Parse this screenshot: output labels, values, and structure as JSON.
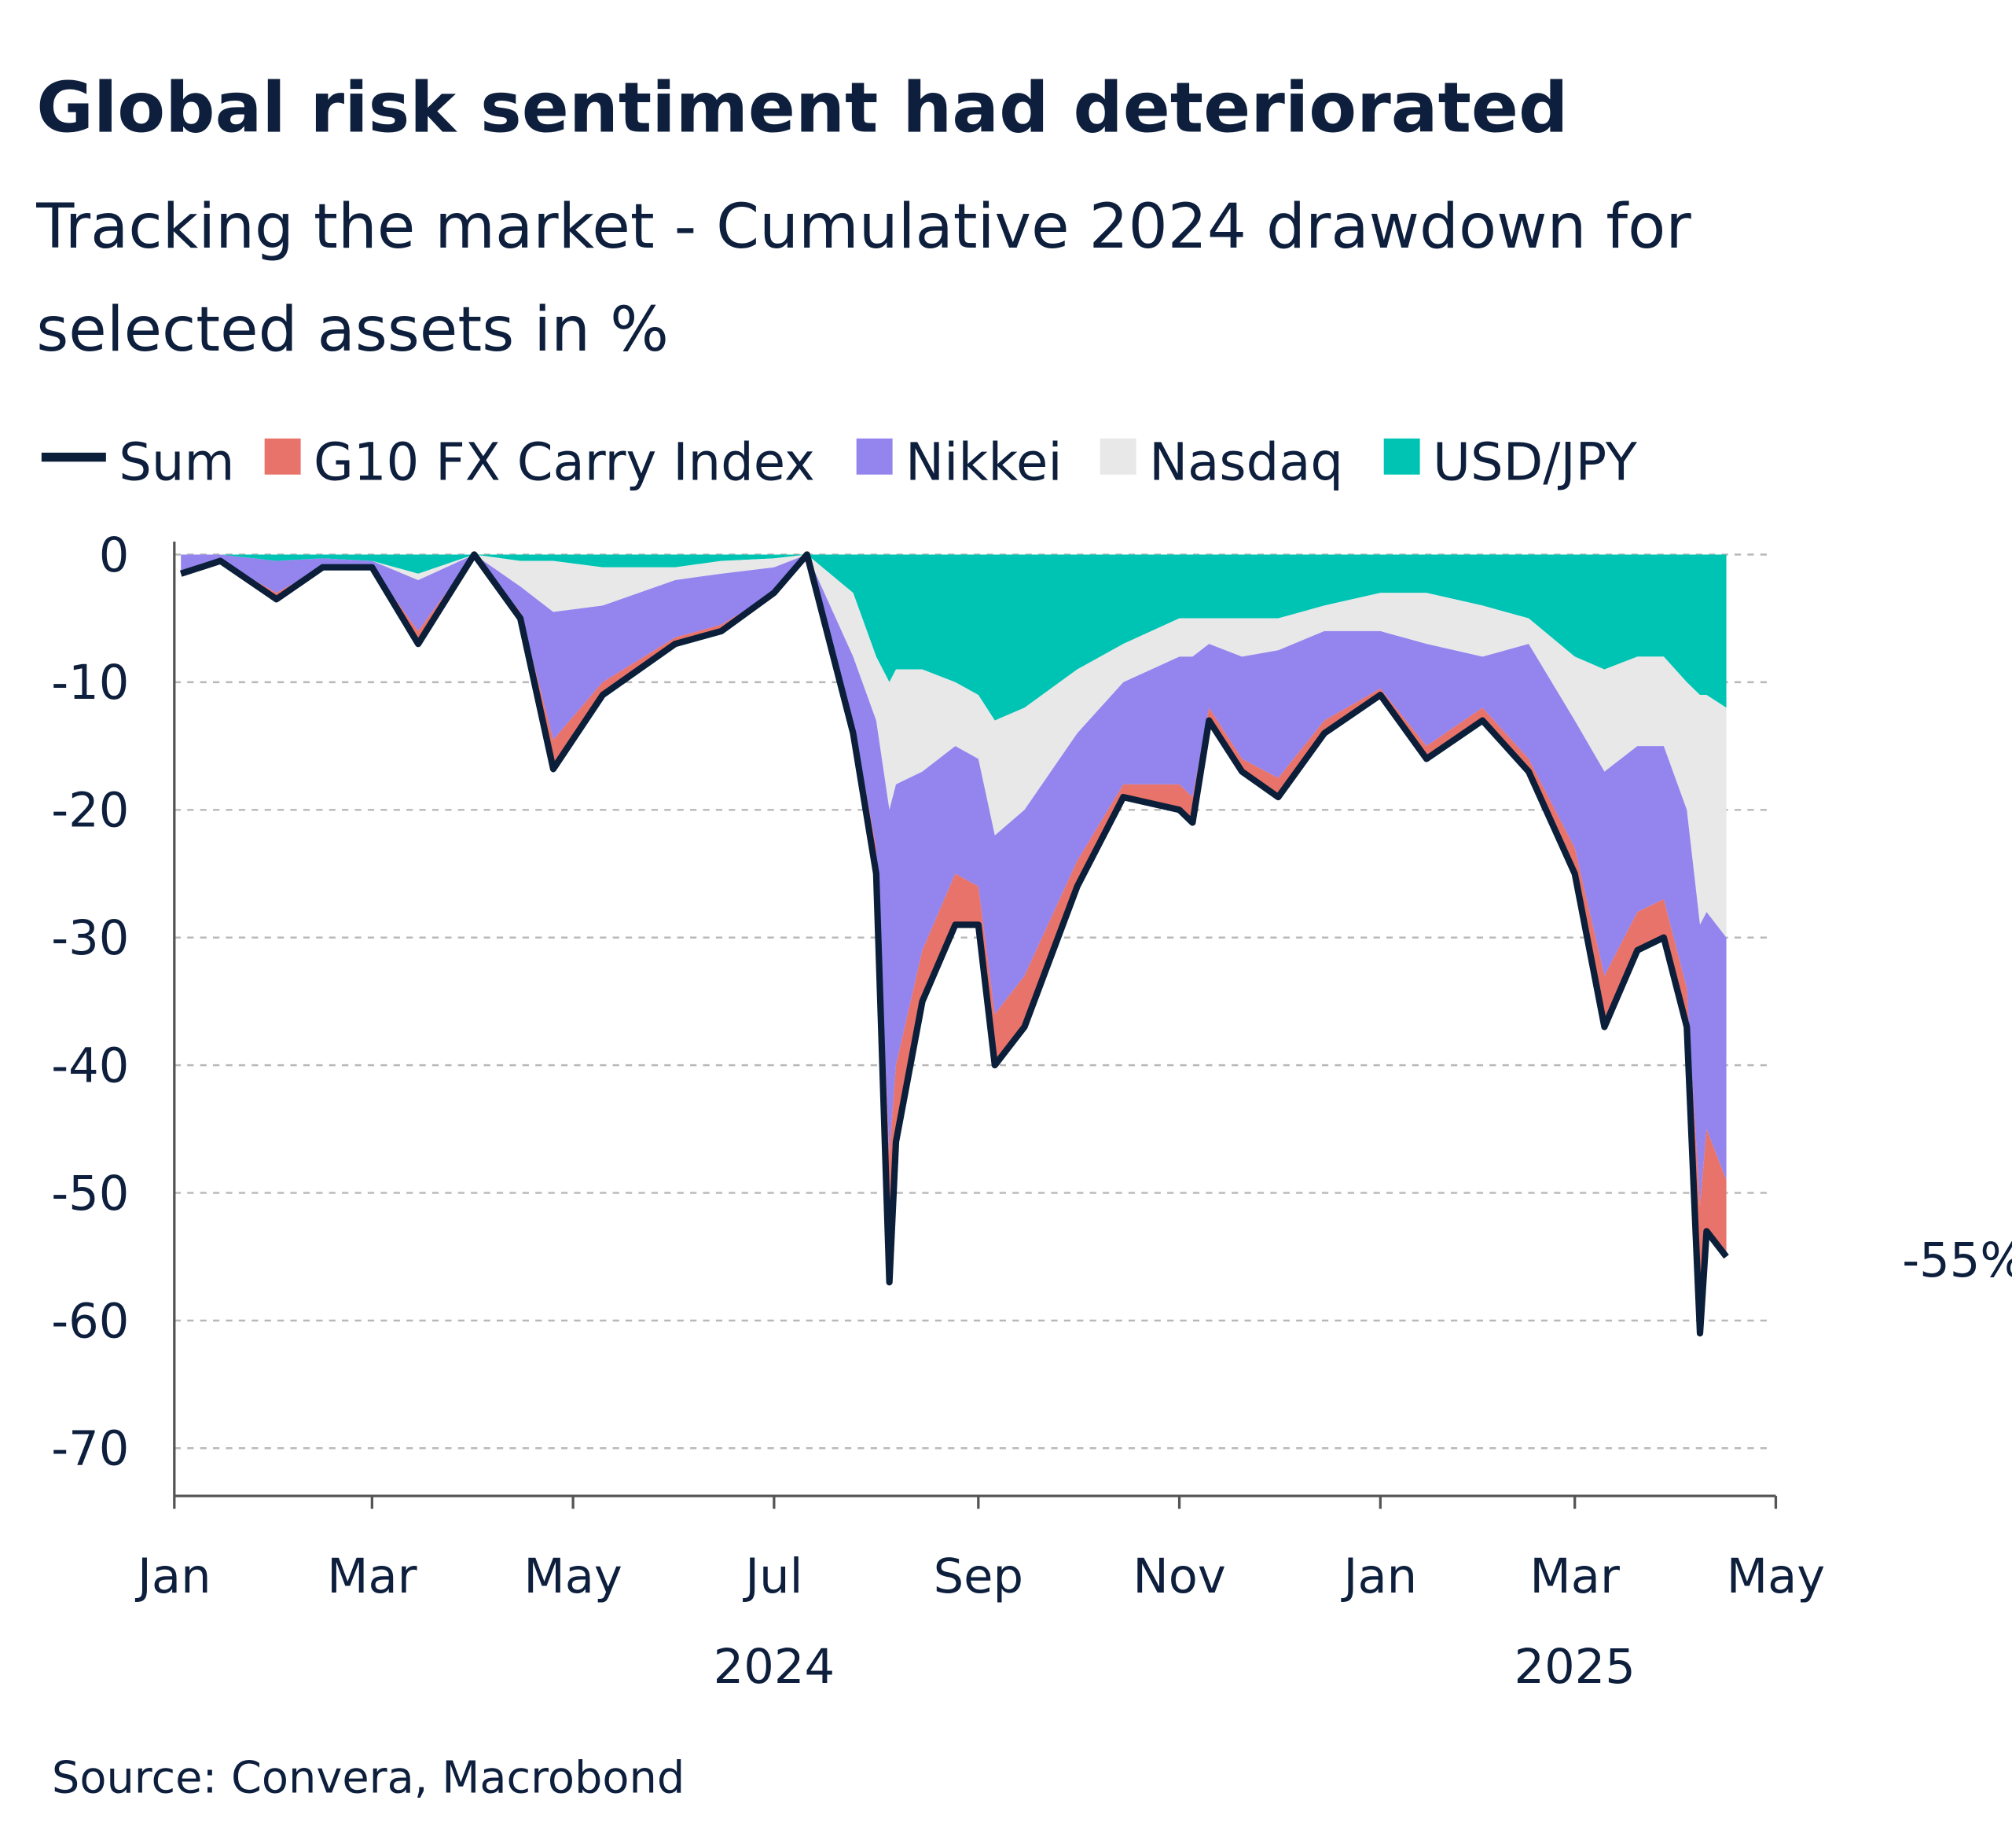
{
  "title": "Global risk sentiment had deteriorated",
  "subtitle_line1": "Tracking the market - Cumulative 2024 drawdown for",
  "subtitle_line2": "selected assets in %",
  "source": "Source: Convera, Macrobond",
  "colors": {
    "sum": "#0b1f3a",
    "g10": "#e8736a",
    "nikkei": "#9485ee",
    "nasdaq": "#e8e8e8",
    "usdjpy": "#00c4b3"
  },
  "chart_data": {
    "type": "area",
    "stacked": true,
    "title": "Global risk sentiment had deteriorated",
    "ylim": [
      -75,
      0
    ],
    "yticks": [
      0,
      -10,
      -20,
      -30,
      -40,
      -50,
      -60,
      -70
    ],
    "ytick_labels": [
      "0",
      "-10",
      "-20",
      "-30",
      "-40",
      "-50",
      "-60",
      "-70"
    ],
    "xlim": [
      "2024-01-01",
      "2025-05-01"
    ],
    "xticks": [
      "2024-01-01",
      "2024-03-01",
      "2024-05-01",
      "2024-07-01",
      "2024-09-01",
      "2024-11-01",
      "2025-01-01",
      "2025-03-01",
      "2025-05-01"
    ],
    "xtick_labels": [
      "Jan",
      "Mar",
      "May",
      "Jul",
      "Sep",
      "Nov",
      "Jan",
      "Mar",
      "May"
    ],
    "year_labels": [
      {
        "label": "2024",
        "at": "2024-07-01"
      },
      {
        "label": "2025",
        "at": "2025-03-01"
      }
    ],
    "grid": true,
    "legend_position": "top",
    "legend": [
      "Sum",
      "G10 FX Carry Index",
      "Nikkei",
      "Nasdaq",
      "USD/JPY"
    ],
    "end_annotation": "-55%",
    "dates": [
      "2024-01-03",
      "2024-01-15",
      "2024-02-01",
      "2024-02-15",
      "2024-03-01",
      "2024-03-15",
      "2024-04-01",
      "2024-04-15",
      "2024-04-25",
      "2024-05-10",
      "2024-06-01",
      "2024-06-15",
      "2024-07-01",
      "2024-07-11",
      "2024-07-25",
      "2024-08-01",
      "2024-08-05",
      "2024-08-07",
      "2024-08-15",
      "2024-08-25",
      "2024-09-01",
      "2024-09-06",
      "2024-09-15",
      "2024-10-01",
      "2024-10-15",
      "2024-11-01",
      "2024-11-05",
      "2024-11-10",
      "2024-11-20",
      "2024-12-01",
      "2024-12-15",
      "2025-01-01",
      "2025-01-15",
      "2025-02-01",
      "2025-02-15",
      "2025-03-01",
      "2025-03-10",
      "2025-03-20",
      "2025-03-28",
      "2025-04-04",
      "2025-04-08",
      "2025-04-10",
      "2025-04-16"
    ],
    "series": [
      {
        "name": "USD/JPY",
        "values": [
          0,
          0,
          -0.5,
          -0.3,
          -0.5,
          -1.5,
          0,
          -0.5,
          -0.5,
          -1,
          -1,
          -0.5,
          -0.3,
          0,
          -3,
          -8,
          -10,
          -9,
          -9,
          -10,
          -11,
          -13,
          -12,
          -9,
          -7,
          -5,
          -5,
          -5,
          -5,
          -5,
          -4,
          -3,
          -3,
          -4,
          -5,
          -8,
          -9,
          -8,
          -8,
          -10,
          -11,
          -11,
          -12
        ]
      },
      {
        "name": "Nasdaq",
        "values": [
          0,
          0,
          0,
          0,
          0,
          -0.5,
          0,
          -2,
          -4,
          -3,
          -1,
          -1,
          -0.7,
          0,
          -5,
          -5,
          -10,
          -9,
          -8,
          -5,
          -5,
          -9,
          -8,
          -5,
          -3,
          -3,
          -3,
          -2,
          -3,
          -2.5,
          -2,
          -3,
          -4,
          -4,
          -2,
          -5,
          -8,
          -7,
          -7,
          -10,
          -18,
          -17,
          -18
        ]
      },
      {
        "name": "Nikkei",
        "values": [
          -1.5,
          -0.5,
          -2.5,
          -0.7,
          -0.5,
          -4,
          0,
          -2,
          -10,
          -6,
          -4.5,
          -4,
          -2,
          0,
          -5,
          -10,
          -27,
          -22,
          -14,
          -10,
          -10,
          -14,
          -13,
          -10,
          -8,
          -10,
          -11,
          -5,
          -8,
          -10,
          -7,
          -4.5,
          -8,
          -4,
          -9,
          -10,
          -16,
          -13,
          -12,
          -14,
          -22,
          -17,
          -19
        ]
      },
      {
        "name": "G10 FX Carry Index",
        "values": [
          0,
          0,
          -0.5,
          0,
          0,
          -1,
          0,
          -0.5,
          -2.3,
          -1,
          -0.5,
          -0.5,
          0,
          0,
          -1,
          -2,
          -10,
          -6,
          -4,
          -4,
          -3,
          -4,
          -4,
          -2,
          -1,
          -2,
          -2,
          -1,
          -1,
          -1.5,
          -1,
          -0.5,
          -1,
          -1,
          -1,
          -2,
          -4,
          -3,
          -3,
          -3,
          -10,
          -8,
          -6
        ]
      }
    ]
  }
}
